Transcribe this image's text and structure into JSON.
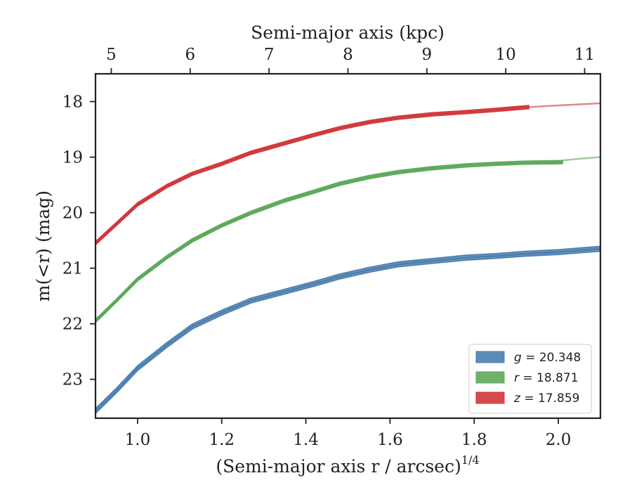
{
  "chart_data": {
    "type": "line",
    "xlabel": "(Semi-major axis r / arcsec)",
    "xlabel_exponent": "1/4",
    "ylabel": "m(<r) (mag)",
    "top_xlabel": "Semi-major axis (kpc)",
    "xlim": [
      0.9,
      2.1
    ],
    "ylim": [
      23.7,
      17.5
    ],
    "top_xlim": [
      4.8,
      11.2
    ],
    "xticks": [
      "1.0",
      "1.2",
      "1.4",
      "1.6",
      "1.8",
      "2.0"
    ],
    "yticks": [
      "18",
      "19",
      "20",
      "21",
      "22",
      "23"
    ],
    "top_xticks": [
      "5",
      "6",
      "7",
      "8",
      "9",
      "10",
      "11"
    ],
    "y_inverted": true,
    "legend_position": "lower-right",
    "series": [
      {
        "name": "g = 20.348",
        "color": "#4c7eae",
        "band_width": 0.09,
        "x": [
          0.9,
          0.95,
          1.0,
          1.07,
          1.13,
          1.2,
          1.27,
          1.35,
          1.42,
          1.48,
          1.55,
          1.62,
          1.7,
          1.78,
          1.85,
          1.92,
          2.0,
          2.05,
          2.1
        ],
        "y": [
          23.57,
          23.2,
          22.8,
          22.38,
          22.05,
          21.8,
          21.58,
          21.42,
          21.28,
          21.15,
          21.03,
          20.93,
          20.87,
          20.81,
          20.78,
          20.74,
          20.71,
          20.68,
          20.65
        ]
      },
      {
        "name": "r = 18.871",
        "color": "#5ea85b",
        "band_width": 0.06,
        "x": [
          0.9,
          0.95,
          1.0,
          1.07,
          1.13,
          1.2,
          1.27,
          1.35,
          1.42,
          1.48,
          1.55,
          1.62,
          1.7,
          1.78,
          1.85,
          1.92,
          2.01
        ],
        "y": [
          21.95,
          21.58,
          21.2,
          20.8,
          20.5,
          20.23,
          20.0,
          19.78,
          19.62,
          19.48,
          19.36,
          19.27,
          19.2,
          19.15,
          19.12,
          19.1,
          19.09
        ]
      },
      {
        "name": "z = 17.859",
        "color": "#d2373a",
        "band_width": 0.06,
        "x": [
          0.9,
          0.95,
          1.0,
          1.07,
          1.13,
          1.2,
          1.27,
          1.35,
          1.42,
          1.48,
          1.55,
          1.62,
          1.7,
          1.78,
          1.85,
          1.93
        ],
        "y": [
          20.55,
          20.2,
          19.85,
          19.52,
          19.3,
          19.12,
          18.92,
          18.75,
          18.6,
          18.48,
          18.37,
          18.29,
          18.23,
          18.19,
          18.15,
          18.1
        ]
      }
    ],
    "extrapolations": [
      {
        "series": "g = 20.348",
        "color": "#4c7eae",
        "x": [
          2.05,
          2.1
        ],
        "y": [
          20.68,
          20.65
        ]
      },
      {
        "series": "r = 18.871",
        "color": "#5ea85b",
        "x": [
          2.01,
          2.05,
          2.1
        ],
        "y": [
          19.06,
          19.03,
          19.0
        ]
      },
      {
        "series": "z = 17.859",
        "color": "#d2373a",
        "x": [
          1.93,
          2.0,
          2.05,
          2.1
        ],
        "y": [
          18.1,
          18.07,
          18.05,
          18.03
        ]
      }
    ]
  }
}
